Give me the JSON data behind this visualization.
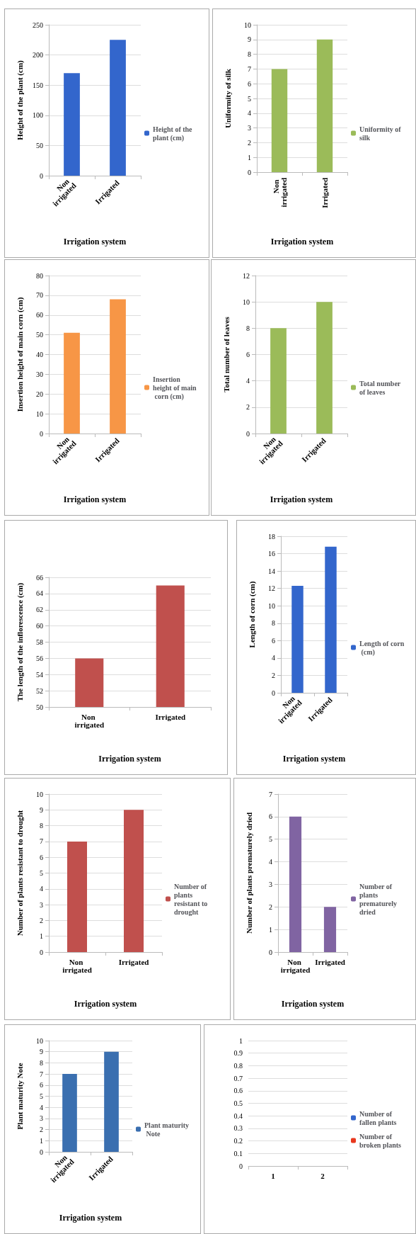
{
  "chart_data": [
    {
      "type": "bar",
      "categories": [
        "Non irrigated",
        "Irrigated"
      ],
      "xlabel": "Irrigation system",
      "ylabel": "Height of the plant (cm)",
      "series": [
        {
          "name": "Height of the plant (cm)",
          "color": "#3366cc",
          "values": [
            170,
            225
          ]
        }
      ],
      "ylim": [
        0,
        250
      ],
      "yticks": [
        0,
        50,
        100,
        150,
        200,
        250
      ],
      "grid": "y",
      "legend": "right"
    },
    {
      "type": "bar",
      "categories": [
        "Non irrigated",
        "Irrigated"
      ],
      "xlabel": "Irrigation system",
      "ylabel": "Uniformity of silk",
      "series": [
        {
          "name": "Uniformity of silk",
          "color": "#9bbb59",
          "values": [
            7,
            9
          ]
        }
      ],
      "ylim": [
        0,
        10
      ],
      "yticks": [
        0,
        1,
        2,
        3,
        4,
        5,
        6,
        7,
        8,
        9,
        10
      ],
      "grid": "y",
      "legend": "right"
    },
    {
      "type": "bar",
      "categories": [
        "Non irrigated",
        "Irrigated"
      ],
      "xlabel": "Irrigation system",
      "ylabel": "Insertion height of main corn (cm)",
      "series": [
        {
          "name": "Insertion height of main corn (cm)",
          "color": "#f79646",
          "values": [
            51,
            68
          ]
        }
      ],
      "ylim": [
        0,
        80
      ],
      "yticks": [
        0,
        10,
        20,
        30,
        40,
        50,
        60,
        70,
        80
      ],
      "grid": "y",
      "legend": "right"
    },
    {
      "type": "bar",
      "categories": [
        "Non irrigated",
        "Irrigated"
      ],
      "xlabel": "Irrigation system",
      "ylabel": "Total number of leaves",
      "series": [
        {
          "name": "Total number of leaves",
          "color": "#9bbb59",
          "values": [
            8,
            10
          ]
        }
      ],
      "ylim": [
        0,
        12
      ],
      "yticks": [
        0,
        2,
        4,
        6,
        8,
        10,
        12
      ],
      "grid": "y",
      "legend": "right"
    },
    {
      "type": "bar",
      "categories": [
        "Non irrigated",
        "Irrigated"
      ],
      "xlabel": "Irrigation system",
      "ylabel": "The length of the inflorescence (cm)",
      "series": [
        {
          "color": "#c0504d",
          "values": [
            56,
            65
          ]
        }
      ],
      "ylim": [
        50,
        66
      ],
      "yticks": [
        50,
        52,
        54,
        56,
        58,
        60,
        62,
        64,
        66
      ],
      "grid": "y"
    },
    {
      "type": "bar",
      "categories": [
        "Non irrigated",
        "Irrigated"
      ],
      "xlabel": "Irrigation system",
      "ylabel": "Length of corn (cm)",
      "series": [
        {
          "name": "Length of corn (cm)",
          "color": "#3366cc",
          "values": [
            12.3,
            16.8
          ]
        }
      ],
      "ylim": [
        0,
        18
      ],
      "yticks": [
        0,
        2,
        4,
        6,
        8,
        10,
        12,
        14,
        16,
        18
      ],
      "grid": "y",
      "legend": "right"
    },
    {
      "type": "bar",
      "categories": [
        "Non irrigated",
        "Irrigated"
      ],
      "xlabel": "Irrigation system",
      "ylabel": "Number of plants resistant to drought",
      "series": [
        {
          "name": "Number of plants resistant to drought",
          "color": "#c0504d",
          "values": [
            7,
            9
          ]
        }
      ],
      "ylim": [
        0,
        10
      ],
      "yticks": [
        0,
        1,
        2,
        3,
        4,
        5,
        6,
        7,
        8,
        9,
        10
      ],
      "grid": "y",
      "legend": "right"
    },
    {
      "type": "bar",
      "categories": [
        "Non irrigated",
        "Irrigated"
      ],
      "xlabel": "Irrigation system",
      "ylabel": "Number of plants prematurely dried",
      "series": [
        {
          "name": "Number of plants prematurely dried",
          "color": "#8064a2",
          "values": [
            6,
            2
          ]
        }
      ],
      "ylim": [
        0,
        7
      ],
      "yticks": [
        0,
        1,
        2,
        3,
        4,
        5,
        6,
        7
      ],
      "grid": "y",
      "legend": "right"
    },
    {
      "type": "bar",
      "categories": [
        "Non irrigated",
        "Irrigated"
      ],
      "xlabel": "Irrigation system",
      "ylabel": "Plant maturity Note",
      "series": [
        {
          "name": "Plant maturity Note",
          "color": "#3a6fb0",
          "values": [
            7,
            9
          ]
        }
      ],
      "ylim": [
        0,
        10
      ],
      "yticks": [
        0,
        1,
        2,
        3,
        4,
        5,
        6,
        7,
        8,
        9,
        10
      ],
      "grid": "y",
      "legend": "right"
    },
    {
      "type": "bar",
      "categories": [
        "1",
        "2"
      ],
      "series": [
        {
          "name": "Number of fallen plants",
          "color": "#3366cc",
          "values": [
            0,
            0
          ]
        },
        {
          "name": "Number of broken plants",
          "color": "#e8381e",
          "values": [
            0,
            0
          ]
        }
      ],
      "ylim": [
        0,
        1
      ],
      "yticks": [
        0,
        0.1,
        0.2,
        0.3,
        0.4,
        0.5,
        0.6,
        0.7,
        0.8,
        0.9,
        1
      ],
      "grid": "y",
      "legend": "right"
    }
  ]
}
